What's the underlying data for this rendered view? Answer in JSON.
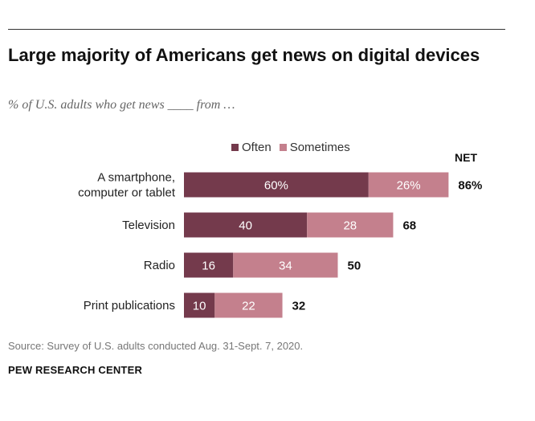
{
  "title": "Large majority of Americans get news on digital devices",
  "subtitle": "% of U.S. adults who get news ____ from …",
  "legend": {
    "often": "Often",
    "sometimes": "Sometimes"
  },
  "net_label": "NET",
  "source": "Source: Survey of U.S. adults conducted Aug. 31-Sept. 7, 2020.",
  "org": "PEW RESEARCH CENTER",
  "colors": {
    "often": "#743a4c",
    "sometimes": "#c4808d",
    "label_text": "#ffffff"
  },
  "chart_data": {
    "type": "bar",
    "orientation": "horizontal",
    "stacked": true,
    "categories": [
      [
        "A smartphone,",
        "computer or tablet"
      ],
      [
        "Television"
      ],
      [
        "Radio"
      ],
      [
        "Print publications"
      ]
    ],
    "series": [
      {
        "name": "Often",
        "values": [
          60,
          40,
          16,
          10
        ],
        "labels": [
          "60%",
          "40",
          "16",
          "10"
        ]
      },
      {
        "name": "Sometimes",
        "values": [
          26,
          28,
          34,
          22
        ],
        "labels": [
          "26%",
          "28",
          "34",
          "22"
        ]
      }
    ],
    "net": {
      "values": [
        86,
        68,
        50,
        32
      ],
      "labels": [
        "86%",
        "68",
        "50",
        "32"
      ]
    },
    "legend_position": "top",
    "grid": false
  }
}
